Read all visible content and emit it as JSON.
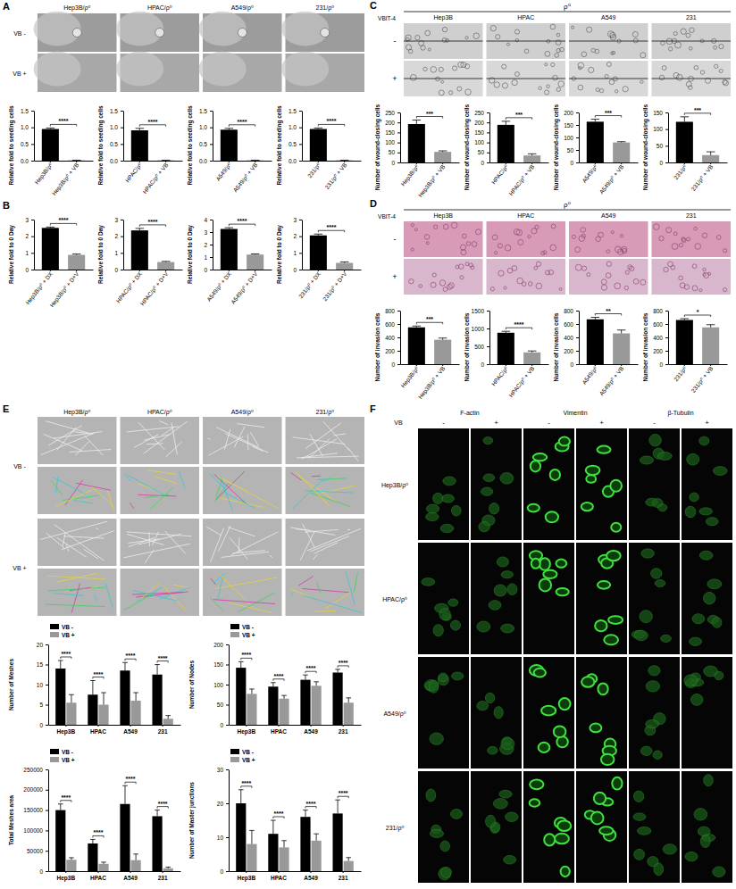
{
  "chart_data": [
    {
      "type": "bar",
      "ylabel": "Relative fold to seeding cells",
      "categories": [
        "Hep3B/ρ⁰",
        "Hep3B/ρ⁰ + VB"
      ],
      "values": [
        0.95,
        0.01
      ],
      "errors": [
        0.03,
        0.005
      ],
      "colors": [
        "#000000",
        "#999999"
      ],
      "ylim": [
        0,
        1.5
      ],
      "yticks": [
        {
          "value": 0,
          "label": "0.0"
        },
        {
          "value": 0.5,
          "label": "0.5"
        },
        {
          "value": 1,
          "label": "1.0"
        },
        {
          "value": 1.5,
          "label": "1.5"
        }
      ],
      "annotation": "****"
    },
    {
      "type": "bar",
      "ylabel": "Relative fold to seeding cells",
      "categories": [
        "HPAC/ρ⁰",
        "HPAC/ρ⁰ + VB"
      ],
      "values": [
        0.91,
        0.01
      ],
      "errors": [
        0.06,
        0.005
      ],
      "colors": [
        "#000000",
        "#999999"
      ],
      "ylim": [
        0,
        1.5
      ],
      "yticks": [
        {
          "value": 0,
          "label": "0.0"
        },
        {
          "value": 0.5,
          "label": "0.5"
        },
        {
          "value": 1,
          "label": "1.0"
        },
        {
          "value": 1.5,
          "label": "1.5"
        }
      ],
      "annotation": "****"
    },
    {
      "type": "bar",
      "ylabel": "Relative fold to seeding cells",
      "categories": [
        "A549/ρ⁰",
        "A549/ρ⁰ + VB"
      ],
      "values": [
        0.93,
        0.01
      ],
      "errors": [
        0.04,
        0.005
      ],
      "colors": [
        "#000000",
        "#999999"
      ],
      "ylim": [
        0,
        1.5
      ],
      "yticks": [
        {
          "value": 0,
          "label": "0.0"
        },
        {
          "value": 0.5,
          "label": "0.5"
        },
        {
          "value": 1,
          "label": "1.0"
        },
        {
          "value": 1.5,
          "label": "1.5"
        }
      ],
      "annotation": "****"
    },
    {
      "type": "bar",
      "ylabel": "Relative fold to seeding cells",
      "categories": [
        "231/ρ⁰",
        "231/ρ⁰ + VB"
      ],
      "values": [
        0.95,
        0.01
      ],
      "errors": [
        0.03,
        0.005
      ],
      "colors": [
        "#000000",
        "#999999"
      ],
      "ylim": [
        0,
        1.5
      ],
      "yticks": [
        {
          "value": 0,
          "label": "0.0"
        },
        {
          "value": 0.5,
          "label": "0.5"
        },
        {
          "value": 1,
          "label": "1.0"
        },
        {
          "value": 1.5,
          "label": "1.5"
        }
      ],
      "annotation": "****"
    },
    {
      "type": "bar",
      "ylabel": "Relative fold to 0 Day",
      "categories": [
        "Hep3B/ρ⁰ + DX",
        "Hep3B/ρ⁰ + D+V"
      ],
      "values": [
        2.5,
        0.88
      ],
      "errors": [
        0.05,
        0.05
      ],
      "colors": [
        "#000000",
        "#999999"
      ],
      "ylim": [
        0,
        3
      ],
      "yticks": [
        0,
        1,
        2,
        3
      ],
      "annotation": "****"
    },
    {
      "type": "bar",
      "ylabel": "Relative fold to 0 Day",
      "categories": [
        "HPAC/ρ⁰ + DX",
        "HPAC/ρ⁰ + D+V"
      ],
      "values": [
        2.35,
        0.45
      ],
      "errors": [
        0.12,
        0.04
      ],
      "colors": [
        "#000000",
        "#999999"
      ],
      "ylim": [
        0,
        3
      ],
      "yticks": [
        0,
        1,
        2,
        3
      ],
      "annotation": "****"
    },
    {
      "type": "bar",
      "ylabel": "Relative fold to 0 Day",
      "categories": [
        "A549/ρ⁰ + DX",
        "A549/ρ⁰ + D+V"
      ],
      "values": [
        3.25,
        1.2
      ],
      "errors": [
        0.1,
        0.05
      ],
      "colors": [
        "#000000",
        "#999999"
      ],
      "ylim": [
        0,
        4
      ],
      "yticks": [
        0,
        1,
        2,
        3,
        4
      ],
      "annotation": "****"
    },
    {
      "type": "bar",
      "ylabel": "Relative fold to 0 Day",
      "categories": [
        "231/ρ⁰ + DX",
        "231/ρ⁰ + D+V"
      ],
      "values": [
        2.05,
        0.4
      ],
      "errors": [
        0.08,
        0.06
      ],
      "colors": [
        "#000000",
        "#999999"
      ],
      "ylim": [
        0,
        3
      ],
      "yticks": [
        0,
        1,
        2,
        3
      ],
      "annotation": "****"
    },
    {
      "type": "bar",
      "ylabel": "Number of wound-closing cells",
      "categories": [
        "Hep3B/ρ⁰",
        "Hep3B/ρ⁰ + VB"
      ],
      "values": [
        192,
        53
      ],
      "errors": [
        20,
        5
      ],
      "colors": [
        "#000000",
        "#999999"
      ],
      "ylim": [
        0,
        250
      ],
      "yticks": [
        0,
        50,
        100,
        150,
        200,
        250
      ],
      "annotation": "***"
    },
    {
      "type": "bar",
      "ylabel": "Number of wound-closing cells",
      "categories": [
        "HPAC/ρ⁰",
        "HPAC/ρ⁰ + VB"
      ],
      "values": [
        188,
        35
      ],
      "errors": [
        18,
        8
      ],
      "colors": [
        "#000000",
        "#999999"
      ],
      "ylim": [
        0,
        250
      ],
      "yticks": [
        0,
        50,
        100,
        150,
        200,
        250
      ],
      "annotation": "***"
    },
    {
      "type": "bar",
      "ylabel": "Number of wound-closing cells",
      "categories": [
        "A549/ρ⁰",
        "A549/ρ⁰ + VB"
      ],
      "values": [
        163,
        80
      ],
      "errors": [
        10,
        3
      ],
      "colors": [
        "#000000",
        "#999999"
      ],
      "ylim": [
        0,
        200
      ],
      "yticks": [
        0,
        50,
        100,
        150,
        200
      ],
      "annotation": "***"
    },
    {
      "type": "bar",
      "ylabel": "Number of wound-closing cells",
      "categories": [
        "231/ρ⁰",
        "231/ρ⁰ + VB"
      ],
      "values": [
        122,
        22
      ],
      "errors": [
        15,
        10
      ],
      "colors": [
        "#000000",
        "#999999"
      ],
      "ylim": [
        0,
        150
      ],
      "yticks": [
        0,
        50,
        100,
        150
      ],
      "annotation": "***"
    },
    {
      "type": "bar",
      "ylabel": "Number of invasion cells",
      "categories": [
        "Hep3B/ρ⁰",
        "Hep3B/ρ⁰ + VB"
      ],
      "values": [
        550,
        365
      ],
      "errors": [
        20,
        25
      ],
      "colors": [
        "#000000",
        "#999999"
      ],
      "ylim": [
        0,
        800
      ],
      "yticks": [
        0,
        200,
        400,
        600,
        800
      ],
      "annotation": "***"
    },
    {
      "type": "bar",
      "ylabel": "Number of invasion cells",
      "categories": [
        "HPAC/ρ⁰",
        "HPAC/ρ⁰ + VB"
      ],
      "values": [
        880,
        330
      ],
      "errors": [
        40,
        40
      ],
      "colors": [
        "#000000",
        "#999999"
      ],
      "ylim": [
        0,
        1500
      ],
      "yticks": [
        0,
        500,
        1000,
        1500
      ],
      "annotation": "****"
    },
    {
      "type": "bar",
      "ylabel": "Number of invasion cells",
      "categories": [
        "A549/ρ⁰",
        "A549/ρ⁰ + VB"
      ],
      "values": [
        670,
        460
      ],
      "errors": [
        30,
        50
      ],
      "colors": [
        "#000000",
        "#999999"
      ],
      "ylim": [
        0,
        800
      ],
      "yticks": [
        0,
        200,
        400,
        600,
        800
      ],
      "annotation": "**"
    },
    {
      "type": "bar",
      "ylabel": "Number of invasion cells",
      "categories": [
        "231/ρ⁰",
        "231/ρ⁰ + VB"
      ],
      "values": [
        660,
        550
      ],
      "errors": [
        20,
        40
      ],
      "colors": [
        "#000000",
        "#999999"
      ],
      "ylim": [
        0,
        800
      ],
      "yticks": [
        0,
        200,
        400,
        600,
        800
      ],
      "annotation": "*"
    },
    {
      "type": "grouped_bar",
      "ylabel": "Number of Meshes",
      "categories": [
        "Hep3B",
        "HPAC",
        "A549",
        "231"
      ],
      "series": [
        {
          "name": "VB -",
          "color": "#000000",
          "values": [
            14,
            7.5,
            13.5,
            12.5
          ],
          "errors": [
            2,
            3.5,
            2,
            2.5
          ]
        },
        {
          "name": "VB +",
          "color": "#999999",
          "values": [
            5.5,
            5,
            6,
            1.5
          ],
          "errors": [
            2,
            3,
            2,
            0.8
          ]
        }
      ],
      "ylim": [
        0,
        20
      ],
      "yticks": [
        0,
        5,
        10,
        15,
        20
      ],
      "legend": "top-left",
      "annotation": [
        "****",
        "****",
        "****",
        "****"
      ]
    },
    {
      "type": "grouped_bar",
      "ylabel": "Number of Nodes",
      "categories": [
        "Hep3B",
        "HPAC",
        "A549",
        "231"
      ],
      "series": [
        {
          "name": "VB -",
          "color": "#000000",
          "values": [
            142,
            95,
            112,
            130
          ],
          "errors": [
            15,
            10,
            12,
            8
          ]
        },
        {
          "name": "VB +",
          "color": "#999999",
          "values": [
            77,
            65,
            97,
            55
          ],
          "errors": [
            12,
            8,
            10,
            12
          ]
        }
      ],
      "ylim": [
        0,
        200
      ],
      "yticks": [
        0,
        50,
        100,
        150,
        200
      ],
      "legend": "top-left",
      "annotation": [
        "****",
        "****",
        "****",
        "****"
      ]
    },
    {
      "type": "grouped_bar",
      "ylabel": "Total Meshes area",
      "categories": [
        "Hep3B",
        "HPAC",
        "A549",
        "231"
      ],
      "series": [
        {
          "name": "VB -",
          "color": "#000000",
          "values": [
            150000,
            68000,
            165000,
            135000
          ],
          "errors": [
            15000,
            10000,
            45000,
            15000
          ]
        },
        {
          "name": "VB +",
          "color": "#999999",
          "values": [
            28000,
            18000,
            27000,
            7000
          ],
          "errors": [
            5000,
            4000,
            15000,
            3000
          ]
        }
      ],
      "ylim": [
        0,
        250000
      ],
      "yticks": [
        0,
        50000,
        100000,
        150000,
        200000,
        250000
      ],
      "legend": "top-left",
      "annotation": [
        "****",
        "****",
        "****",
        "****"
      ]
    },
    {
      "type": "grouped_bar",
      "ylabel": "Number of Master junctions",
      "categories": [
        "Hep3B",
        "HPAC",
        "A549",
        "231"
      ],
      "series": [
        {
          "name": "VB -",
          "color": "#000000",
          "values": [
            20,
            11,
            16,
            17
          ],
          "errors": [
            4,
            4,
            2,
            4
          ]
        },
        {
          "name": "VB +",
          "color": "#999999",
          "values": [
            8,
            7,
            9,
            3
          ],
          "errors": [
            4,
            2,
            2,
            1
          ]
        }
      ],
      "ylim": [
        0,
        30
      ],
      "yticks": [
        0,
        10,
        20,
        30
      ],
      "legend": "top-left",
      "annotation": [
        "****",
        "****",
        "****",
        "****"
      ]
    }
  ],
  "figure": {
    "A": {
      "letter": "A",
      "columns": [
        "Hep3B/ρ⁰",
        "HPAC/ρ⁰",
        "A549/ρ⁰",
        "231/ρ⁰"
      ],
      "rows": [
        "VB -",
        "VB +"
      ]
    },
    "B": {
      "letter": "B"
    },
    "C": {
      "letter": "C",
      "header": "ρ⁰",
      "columns": [
        "Hep3B",
        "HPAC",
        "A549",
        "231"
      ],
      "row_title": "VBIT-4",
      "rows": [
        "-",
        "+"
      ]
    },
    "D": {
      "letter": "D",
      "header": "ρ⁰",
      "columns": [
        "Hep3B",
        "HPAC",
        "A549",
        "231"
      ],
      "row_title": "VBIT-4",
      "rows": [
        "-",
        "+"
      ]
    },
    "E": {
      "letter": "E",
      "columns": [
        "Hep3B/ρ⁰",
        "HPAC/ρ⁰",
        "A549/ρ⁰",
        "231/ρ⁰"
      ],
      "rows": [
        "VB -",
        "VB +"
      ]
    },
    "F": {
      "letter": "F",
      "header": "VB",
      "columns": [
        "F-actin",
        "Vimentin",
        "β-Tubulin"
      ],
      "subcolumns": [
        "-",
        "+"
      ],
      "rows": [
        "Hep3B/ρ⁰",
        "HPAC/ρ⁰",
        "A549/ρ⁰",
        "231/ρ⁰"
      ]
    }
  }
}
